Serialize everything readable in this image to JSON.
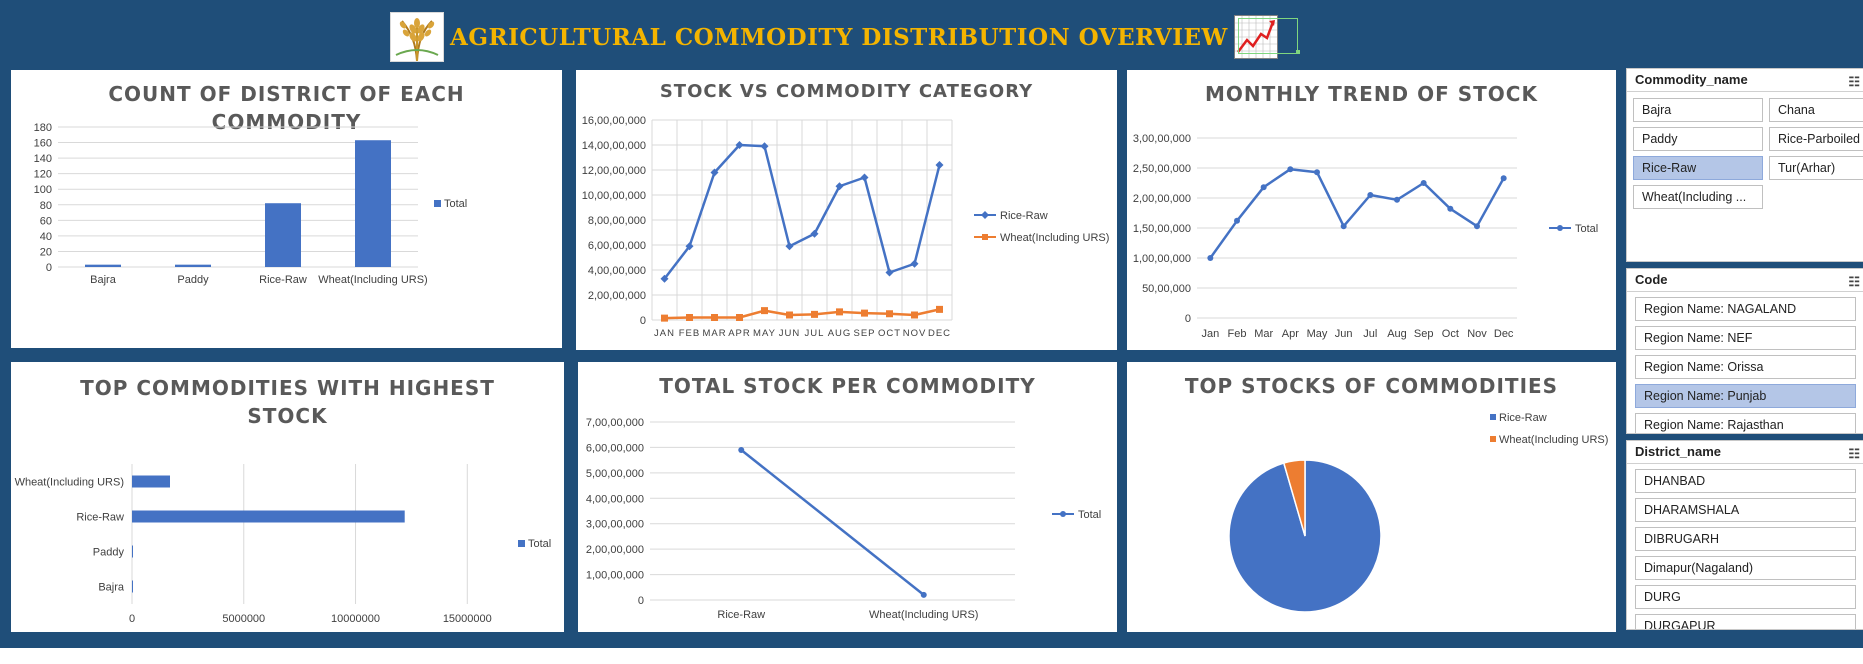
{
  "header": {
    "title": "AGRICULTURAL COMMODITY DISTRIBUTION OVERVIEW",
    "logo_icon": "wheat-icon",
    "trend_icon": "trend-chart-icon"
  },
  "colors": {
    "background": "#1f4e79",
    "title": "#f4b400",
    "series1": "#4472c4",
    "series2": "#ed7d31"
  },
  "chart_data": [
    {
      "type": "bar",
      "title_lines": [
        "COUNT OF DISTRICT OF EACH",
        "COMMODITY"
      ],
      "categories": [
        "Bajra",
        "Paddy",
        "Rice-Raw",
        "Wheat(Including URS)"
      ],
      "series": [
        {
          "name": "Total",
          "values": [
            3,
            3,
            82,
            163
          ]
        }
      ],
      "yticks": [
        "0",
        "20",
        "40",
        "60",
        "80",
        "100",
        "120",
        "140",
        "160",
        "180"
      ],
      "ylim": [
        0,
        180
      ],
      "grid": true,
      "legend": "right"
    },
    {
      "type": "line",
      "title": "STOCK VS COMMODITY CATEGORY",
      "categories": [
        "JAN",
        "FEB",
        "MAR",
        "APR",
        "MAY",
        "JUN",
        "JUL",
        "AUG",
        "SEP",
        "OCT",
        "NOV",
        "DEC"
      ],
      "series": [
        {
          "name": "Rice-Raw",
          "values": [
            330000000,
            590000000,
            1180000000,
            1400000000,
            1390000000,
            590000000,
            690000000,
            1070000000,
            1140000000,
            380000000,
            450000000,
            1240000000
          ]
        },
        {
          "name": "Wheat(Including URS)",
          "values": [
            15000000,
            20000000,
            20000000,
            20000000,
            75000000,
            40000000,
            45000000,
            65000000,
            55000000,
            50000000,
            40000000,
            85000000
          ]
        }
      ],
      "yticks": [
        "0",
        "2,00,00,000",
        "4,00,00,000",
        "6,00,00,000",
        "8,00,00,000",
        "10,00,00,000",
        "12,00,00,000",
        "14,00,00,000",
        "16,00,00,000"
      ],
      "ylim": [
        0,
        1600000000
      ],
      "grid": true,
      "legend": "right"
    },
    {
      "type": "line",
      "title": "MONTHLY TREND OF STOCK",
      "categories": [
        "Jan",
        "Feb",
        "Mar",
        "Apr",
        "May",
        "Jun",
        "Jul",
        "Aug",
        "Sep",
        "Oct",
        "Nov",
        "Dec"
      ],
      "series": [
        {
          "name": "Total",
          "values": [
            100000000,
            162000000,
            218000000,
            248000000,
            243000000,
            153000000,
            205000000,
            197000000,
            225000000,
            182000000,
            153000000,
            233000000
          ]
        }
      ],
      "yticks": [
        "0",
        "50,00,000",
        "1,00,00,000",
        "1,50,00,000",
        "2,00,00,000",
        "2,50,00,000",
        "3,00,00,000"
      ],
      "ylim": [
        0,
        300000000
      ],
      "grid": true,
      "legend": "right"
    },
    {
      "type": "bar",
      "orientation": "horizontal",
      "title_lines": [
        "TOP  COMMODITIES WITH HIGHEST",
        "STOCK"
      ],
      "categories": [
        "Wheat(Including URS)",
        "Rice-Raw",
        "Paddy",
        "Bajra"
      ],
      "series": [
        {
          "name": "Total",
          "values": [
            1700000,
            12200000,
            30000,
            30000
          ]
        }
      ],
      "xticks": [
        "0",
        "5000000",
        "10000000",
        "15000000"
      ],
      "xlim": [
        0,
        17000000
      ],
      "grid": true,
      "legend": "right"
    },
    {
      "type": "line",
      "title": "TOTAL STOCK PER COMMODITY",
      "categories": [
        "Rice-Raw",
        "Wheat(Including URS)"
      ],
      "series": [
        {
          "name": "Total",
          "values": [
            59000000,
            2000000
          ]
        }
      ],
      "yticks": [
        "0",
        "1,00,00,000",
        "2,00,00,000",
        "3,00,00,000",
        "4,00,00,000",
        "5,00,00,000",
        "6,00,00,000",
        "7,00,00,000"
      ],
      "ylim": [
        0,
        70000000
      ],
      "grid": true,
      "legend": "right"
    },
    {
      "type": "pie",
      "title": "TOP STOCKS OF COMMODITIES",
      "categories": [
        "Rice-Raw",
        "Wheat(Including URS)"
      ],
      "values": [
        95.5,
        4.5
      ],
      "legend": "top-right"
    }
  ],
  "slicers": {
    "commodity": {
      "title": "Commodity_name",
      "items": [
        {
          "label": "Bajra",
          "selected": false
        },
        {
          "label": "Chana",
          "selected": false
        },
        {
          "label": "Paddy",
          "selected": false
        },
        {
          "label": "Rice-Parboiled",
          "selected": false
        },
        {
          "label": "Rice-Raw",
          "selected": true
        },
        {
          "label": "Tur(Arhar)",
          "selected": false
        },
        {
          "label": "Wheat(Including ...",
          "selected": false
        }
      ]
    },
    "code": {
      "title": "Code",
      "items": [
        {
          "label": "Region Name: NAGALAND",
          "selected": false
        },
        {
          "label": "Region Name: NEF",
          "selected": false
        },
        {
          "label": "Region Name: Orissa",
          "selected": false
        },
        {
          "label": "Region Name: Punjab",
          "selected": true
        },
        {
          "label": "Region Name: Rajasthan",
          "selected": false
        }
      ]
    },
    "district": {
      "title": "District_name",
      "items": [
        {
          "label": "DHANBAD",
          "selected": false
        },
        {
          "label": "DHARAMSHALA",
          "selected": false
        },
        {
          "label": "DIBRUGARH",
          "selected": false
        },
        {
          "label": "Dimapur(Nagaland)",
          "selected": false
        },
        {
          "label": "DURG",
          "selected": false
        },
        {
          "label": "DURGAPUR",
          "selected": false
        }
      ]
    }
  }
}
